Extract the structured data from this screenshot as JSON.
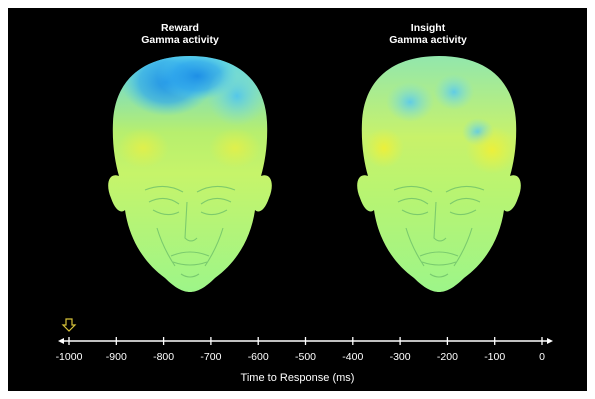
{
  "panels": [
    {
      "title_line1": "Reward",
      "title_line2": "Gamma activity"
    },
    {
      "title_line1": "Insight",
      "title_line2": "Gamma activity"
    }
  ],
  "timeline": {
    "ticks": [
      "-1000",
      "-900",
      "-800",
      "-700",
      "-600",
      "-500",
      "-400",
      "-300",
      "-200",
      "-100",
      "0"
    ],
    "axis_label": "Time to Response (ms)",
    "marker_position_ms": -1000,
    "marker_icon": "down-arrow-icon"
  },
  "colors": {
    "background": "#000000",
    "face_green": "#9cf58a",
    "scalp_blue": "#27a7ee",
    "scalp_cyan": "#5cd3f0",
    "scalp_yellow": "#e4f03c",
    "marker": "#d7c23a"
  }
}
